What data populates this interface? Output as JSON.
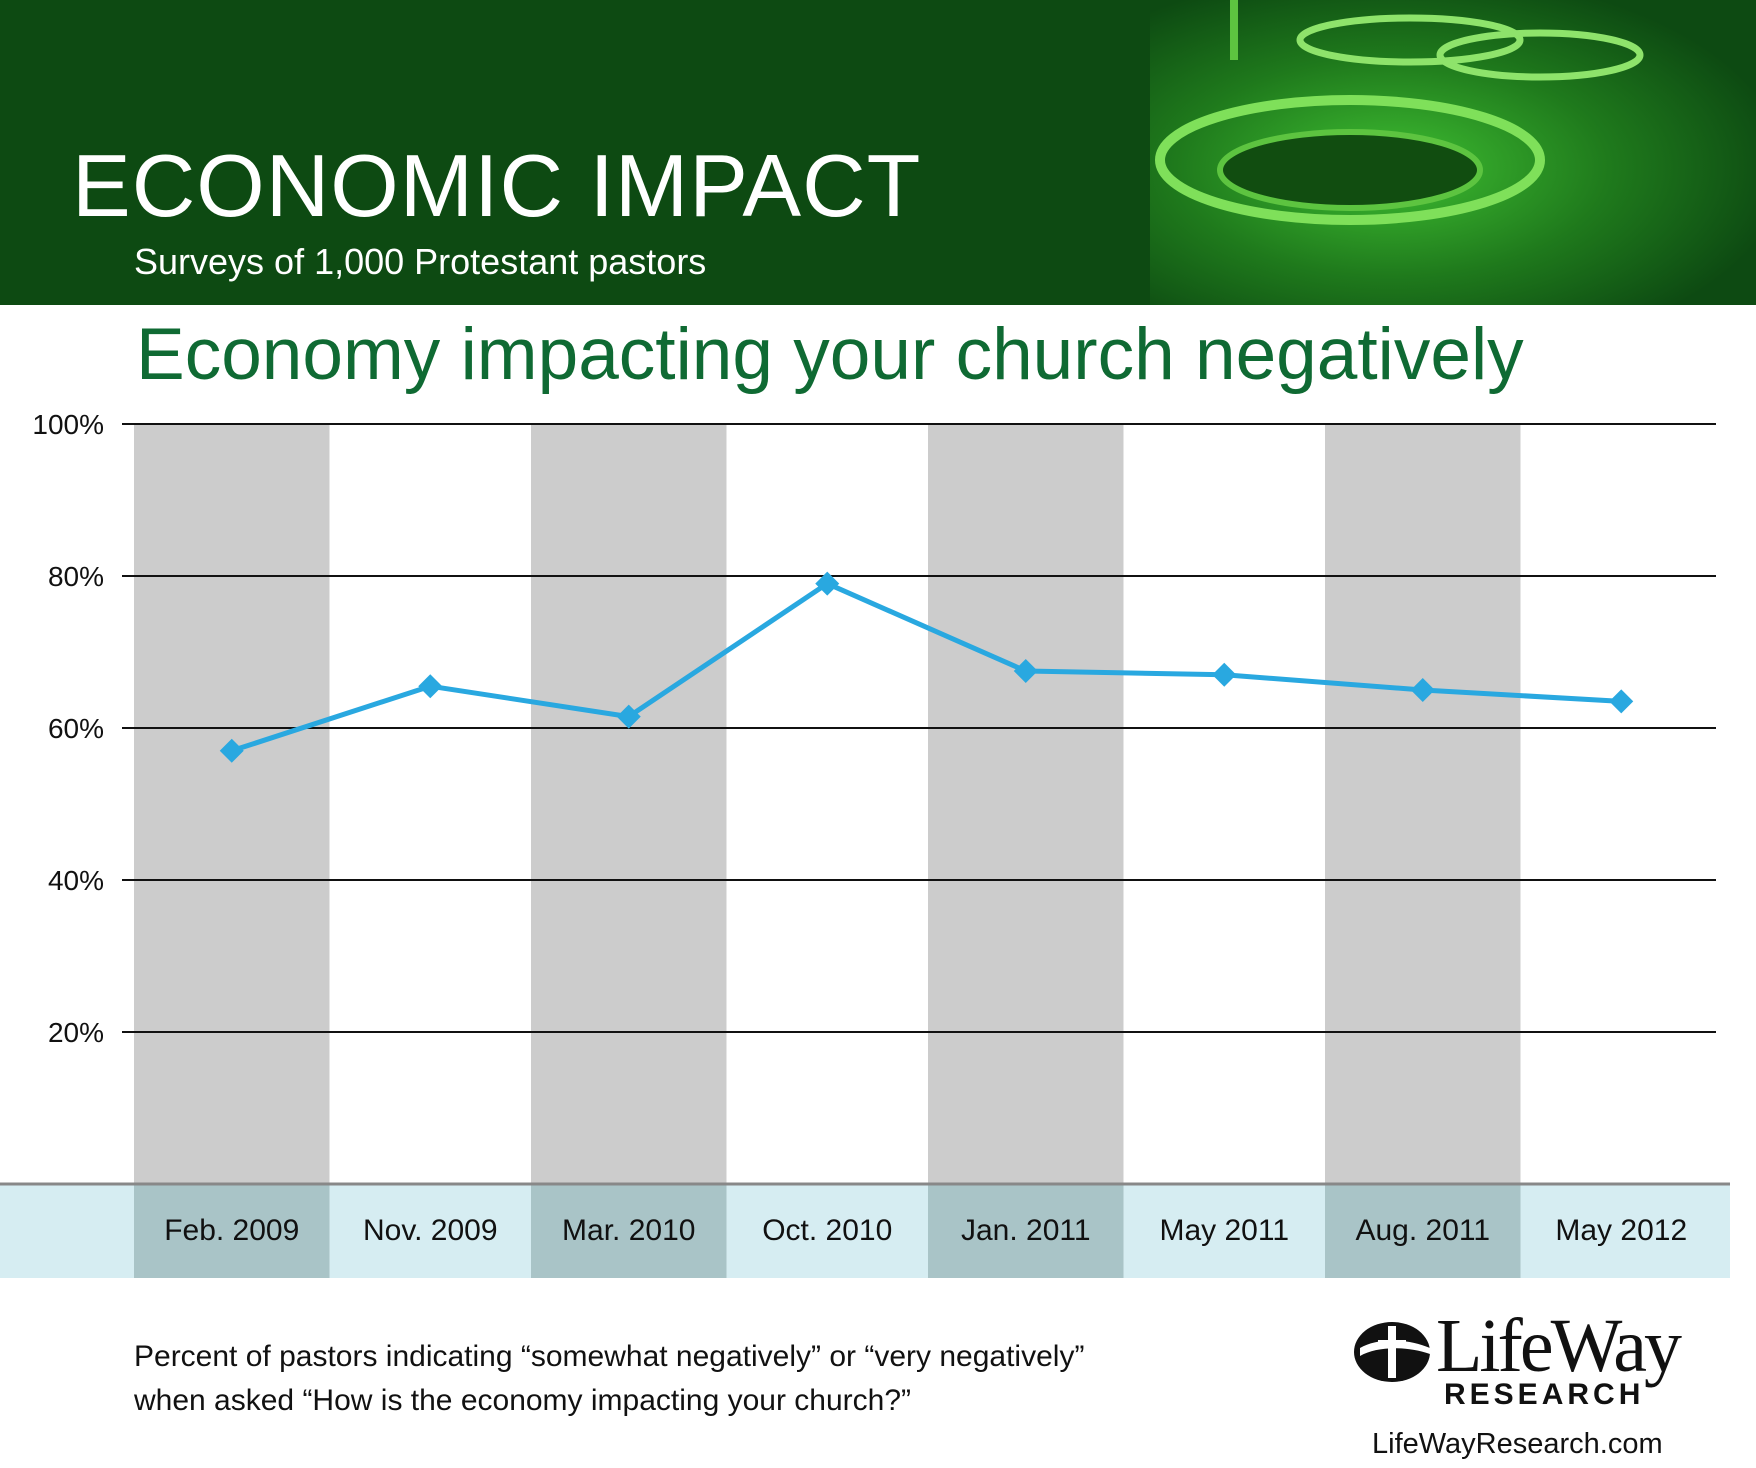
{
  "header": {
    "title": "ECONOMIC IMPACT",
    "subtitle": "Surveys of 1,000 Protestant pastors"
  },
  "chart_title": "Economy impacting your church negatively",
  "footnote": {
    "line1": "Percent of pastors indicating “somewhat negatively” or “very negatively”",
    "line2": "when asked “How is the economy impacting your church?”"
  },
  "logo": {
    "wordmark": "LifeWay",
    "sub": "RESEARCH",
    "url": "LifeWayResearch.com"
  },
  "colors": {
    "header_bg": "#0d4a12",
    "title_green": "#0f6a33",
    "line": "#29a8e0",
    "band_gray": "#cccccc",
    "axis_band": "#d6edf2",
    "axis_band_dark": "#a9c4c7"
  },
  "chart_data": {
    "type": "line",
    "title": "Economy impacting your church negatively",
    "categories": [
      "Feb. 2009",
      "Nov. 2009",
      "Mar. 2010",
      "Oct. 2010",
      "Jan. 2011",
      "May 2011",
      "Aug. 2011",
      "May 2012"
    ],
    "series": [
      {
        "values": [
          57,
          65.5,
          61.5,
          79,
          67.5,
          67,
          65,
          63.5
        ]
      }
    ],
    "yticks": [
      "20%",
      "40%",
      "60%",
      "80%",
      "100%"
    ],
    "ytick_values": [
      20,
      40,
      60,
      80,
      100
    ],
    "ylim": [
      0,
      100
    ],
    "grid": true,
    "alternating_bands": true
  }
}
